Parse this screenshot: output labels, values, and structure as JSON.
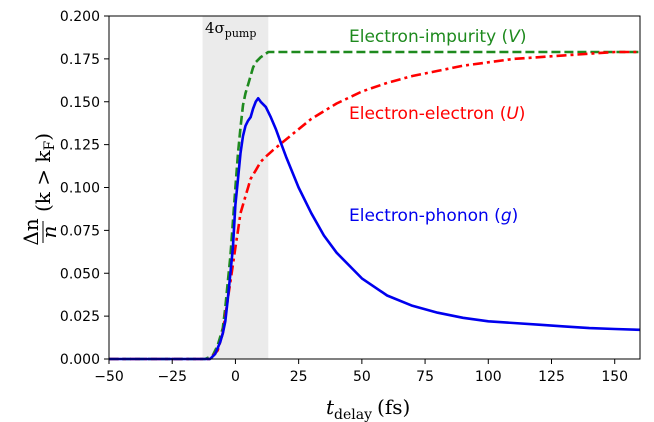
{
  "chart_data": {
    "type": "line",
    "xlim": [
      -50,
      160
    ],
    "ylim": [
      0,
      0.2
    ],
    "xticks": [
      "−50",
      "−25",
      "0",
      "25",
      "50",
      "75",
      "100",
      "125",
      "150"
    ],
    "yticks": [
      "0.000",
      "0.025",
      "0.050",
      "0.075",
      "0.100",
      "0.125",
      "0.150",
      "0.175",
      "0.200"
    ],
    "xtick_values": [
      -50,
      -25,
      0,
      25,
      50,
      75,
      100,
      125,
      150
    ],
    "ytick_values": [
      0,
      0.025,
      0.05,
      0.075,
      0.1,
      0.125,
      0.15,
      0.175,
      0.2
    ],
    "xlabel_main": "t",
    "xlabel_sub": "delay",
    "xlabel_unit": "(fs)",
    "ylabel_num": "Δn",
    "ylabel_den": "n",
    "ylabel_rest": "(k > k",
    "ylabel_sub": "F",
    "ylabel_close": ")",
    "grid": false,
    "shaded_band": {
      "x_range": [
        -13,
        13
      ],
      "label_main": "4σ",
      "label_sub": "pump",
      "color": "#ebebeb"
    },
    "series": [
      {
        "name": "Electron-impurity (V)",
        "label_prefix": "Electron-impurity (",
        "label_var": "V",
        "label_suffix": ")",
        "color": "#1e8a1e",
        "style": "dashed",
        "x": [
          -50,
          -12,
          -9,
          -7,
          -5,
          -4,
          -3,
          -2,
          -1,
          0,
          1,
          2,
          3,
          4,
          5,
          6,
          7,
          8,
          10,
          12,
          13,
          15,
          20,
          40,
          80,
          120,
          160
        ],
        "y": [
          0,
          0,
          0.002,
          0.008,
          0.018,
          0.03,
          0.045,
          0.06,
          0.08,
          0.1,
          0.12,
          0.135,
          0.148,
          0.155,
          0.16,
          0.165,
          0.17,
          0.173,
          0.176,
          0.178,
          0.179,
          0.179,
          0.179,
          0.179,
          0.179,
          0.179,
          0.179
        ]
      },
      {
        "name": "Electron-electron (U)",
        "label_prefix": "Electron-electron (",
        "label_var": "U",
        "label_suffix": ")",
        "color": "#ff0000",
        "style": "dashdot",
        "x": [
          -50,
          -10,
          -7,
          -5,
          -4,
          -3,
          -2,
          -1,
          0,
          1,
          2,
          3,
          4,
          5,
          6,
          8,
          10,
          12,
          15,
          20,
          25,
          30,
          40,
          50,
          60,
          70,
          80,
          90,
          100,
          110,
          120,
          130,
          140,
          150,
          160
        ],
        "y": [
          0,
          0,
          0.005,
          0.015,
          0.025,
          0.035,
          0.045,
          0.055,
          0.065,
          0.075,
          0.085,
          0.09,
          0.095,
          0.1,
          0.105,
          0.11,
          0.115,
          0.118,
          0.122,
          0.128,
          0.134,
          0.14,
          0.149,
          0.156,
          0.161,
          0.165,
          0.168,
          0.171,
          0.173,
          0.175,
          0.176,
          0.177,
          0.178,
          0.179,
          0.179
        ]
      },
      {
        "name": "Electron-phonon (g)",
        "label_prefix": "Electron-phonon (",
        "label_var": "g",
        "label_suffix": ")",
        "color": "#0000ee",
        "style": "solid",
        "x": [
          -50,
          -10,
          -8,
          -6,
          -5,
          -4,
          -3,
          -2,
          -1,
          0,
          1,
          2,
          3,
          4,
          5,
          6,
          7,
          8,
          9,
          10,
          12,
          14,
          16,
          18,
          20,
          25,
          30,
          35,
          40,
          50,
          60,
          70,
          80,
          90,
          100,
          110,
          120,
          130,
          140,
          150,
          160
        ],
        "y": [
          0,
          0,
          0.003,
          0.01,
          0.015,
          0.022,
          0.035,
          0.05,
          0.065,
          0.09,
          0.105,
          0.12,
          0.13,
          0.136,
          0.139,
          0.141,
          0.146,
          0.15,
          0.152,
          0.15,
          0.147,
          0.141,
          0.134,
          0.126,
          0.118,
          0.1,
          0.085,
          0.072,
          0.062,
          0.047,
          0.037,
          0.031,
          0.027,
          0.024,
          0.022,
          0.021,
          0.02,
          0.019,
          0.018,
          0.0175,
          0.017
        ]
      }
    ]
  }
}
